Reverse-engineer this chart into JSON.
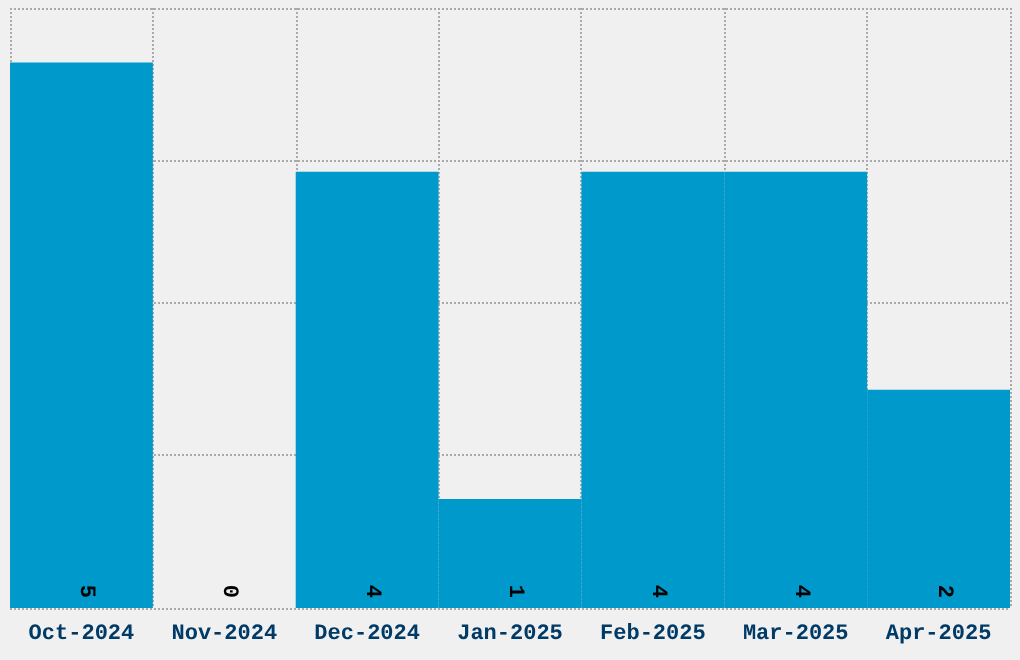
{
  "chart_data": {
    "type": "bar",
    "categories": [
      "Oct-2024",
      "Nov-2024",
      "Dec-2024",
      "Jan-2025",
      "Feb-2025",
      "Mar-2025",
      "Apr-2025"
    ],
    "values": [
      5,
      0,
      4,
      1,
      4,
      4,
      2
    ],
    "color": "#0099cc",
    "data_labels": true,
    "grid": true,
    "tick_labels": "x",
    "ylim": [
      0,
      5.5
    ],
    "yticks": [
      {
        "value": 0,
        "label": null
      },
      {
        "value": 1.4,
        "label": null
      },
      {
        "value": 2.8,
        "label": null
      },
      {
        "value": 4.1,
        "label": null
      },
      {
        "value": 5.5,
        "label": null
      }
    ]
  }
}
